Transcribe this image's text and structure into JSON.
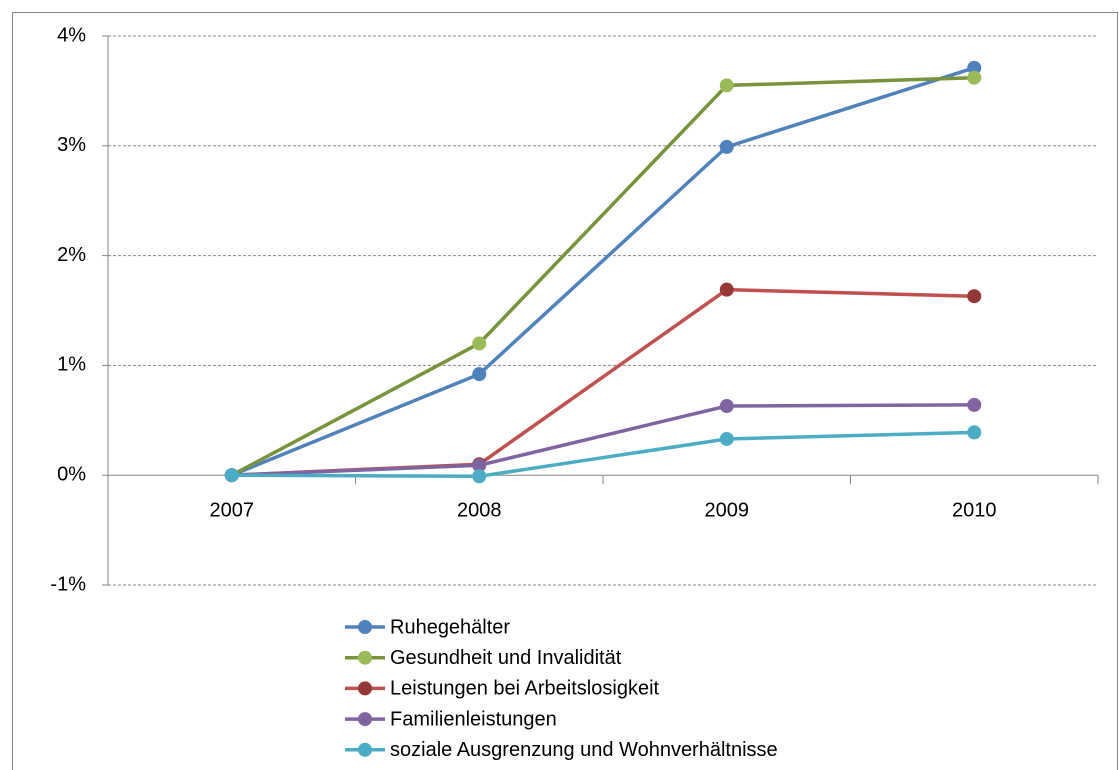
{
  "chart_data": {
    "type": "line",
    "categories": [
      "2007",
      "2008",
      "2009",
      "2010"
    ],
    "series": [
      {
        "name": "Ruhegehälter",
        "color": "#4f81bd",
        "marker_color": "#4f81bd",
        "values": [
          0,
          0.92,
          2.99,
          3.71
        ]
      },
      {
        "name": "Gesundheit und Invalidität",
        "color": "#77933c",
        "marker_color": "#9bbb59",
        "values": [
          0,
          1.2,
          3.55,
          3.62
        ]
      },
      {
        "name": "Leistungen bei Arbeitslosigkeit",
        "color": "#c0504d",
        "marker_color": "#953735",
        "values": [
          0,
          0.1,
          1.69,
          1.63
        ]
      },
      {
        "name": "Familienleistungen",
        "color": "#8064a2",
        "marker_color": "#8064a2",
        "values": [
          0,
          0.09,
          0.63,
          0.64
        ]
      },
      {
        "name": "soziale Ausgrenzung und Wohnverhältnisse",
        "color": "#4bacc6",
        "marker_color": "#4bacc6",
        "values": [
          0,
          -0.01,
          0.33,
          0.39
        ]
      }
    ],
    "ylim": [
      -1,
      4
    ],
    "yticks": [
      {
        "value": -1,
        "label": "-1%"
      },
      {
        "value": 0,
        "label": "0%"
      },
      {
        "value": 1,
        "label": "1%"
      },
      {
        "value": 2,
        "label": "2%"
      },
      {
        "value": 3,
        "label": "3%"
      },
      {
        "value": 4,
        "label": "4%"
      }
    ],
    "grid": true,
    "legend": "bottom"
  }
}
